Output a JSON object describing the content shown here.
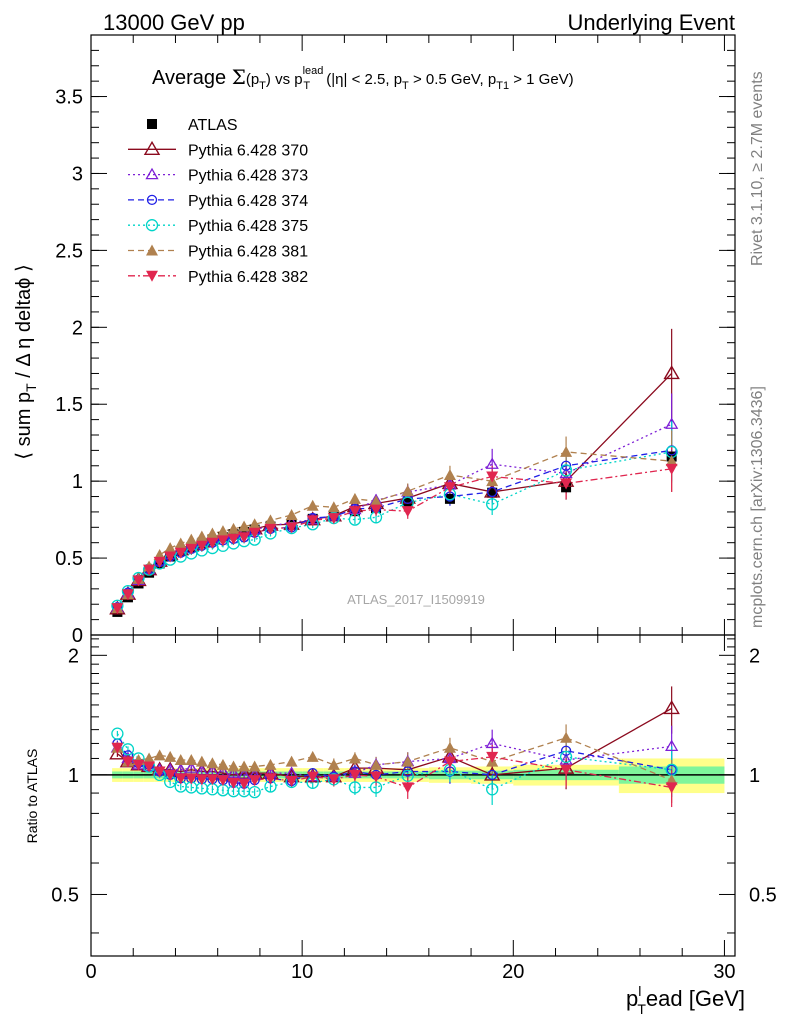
{
  "header": {
    "left": "13000 GeV pp",
    "right": "Underlying Event"
  },
  "side_labels": {
    "rivet": "Rivet 3.1.10, ≥ 2.7M events",
    "mcplots": "mcplots.cern.ch [arXiv:1306.3436]"
  },
  "analysis_label": "ATLAS_2017_I1509919",
  "colors": {
    "atlas": "#000000",
    "p370": "#8b0a1e",
    "p373": "#7d1fd6",
    "p374": "#1f1fe6",
    "p375": "#00d4c8",
    "p381": "#b0814f",
    "p382": "#e0264f",
    "band_inner": "#7ff59b",
    "band_outer": "#ffff8a",
    "ref_line": "#000000",
    "analysis_label": "#a6a6a6",
    "side_label": "#808080"
  },
  "chart_data": [
    {
      "type": "scatter",
      "panel": "main",
      "title": "Average Σ(p_T) vs p_T^lead (|η| < 2.5, p_T > 0.5 GeV, p_T1 > 1 GeV)",
      "title_parts": {
        "pre": "Average ",
        "sigma": "Σ",
        "paren_open": "(p",
        "sub_T": "T",
        "paren_close": ")",
        "vs": " vs p",
        "sup_lead": "lead",
        "sub_T2": "T",
        "cut1": " (|η| < 2.5, p",
        "sub_T3": "T",
        "cut2": " > 0.5 GeV, p",
        "sub_T1": "T1",
        "cut3": " > 1 GeV)"
      },
      "ylabel_parts": {
        "pre": "⟨ sum p",
        "sub": "T",
        "post": " / Δ η deltaϕ ⟩"
      },
      "xlim": [
        0,
        30.5
      ],
      "ylim": [
        0,
        3.9
      ],
      "y_ticks": [
        0,
        0.5,
        1,
        1.5,
        2,
        2.5,
        3,
        3.5
      ],
      "y_tick_labels": [
        "0",
        "0.5",
        "1",
        "1.5",
        "2",
        "2.5",
        "3",
        "3.5"
      ],
      "legend_position": "top-left",
      "x": [
        1.25,
        1.75,
        2.25,
        2.75,
        3.25,
        3.75,
        4.25,
        4.75,
        5.25,
        5.75,
        6.25,
        6.75,
        7.25,
        7.75,
        8.5,
        9.5,
        10.5,
        11.5,
        12.5,
        13.5,
        15.0,
        17.0,
        19.0,
        22.5,
        27.5
      ],
      "series": [
        {
          "key": "atlas",
          "name": "ATLAS",
          "marker": "square",
          "values": [
            0.15,
            0.245,
            0.335,
            0.405,
            0.465,
            0.51,
            0.545,
            0.57,
            0.595,
            0.615,
            0.635,
            0.655,
            0.67,
            0.685,
            0.705,
            0.725,
            0.755,
            0.78,
            0.805,
            0.825,
            0.865,
            0.885,
            0.925,
            0.96,
            1.16
          ],
          "errors": [
            0.01,
            0.01,
            0.01,
            0.01,
            0.01,
            0.01,
            0.01,
            0.01,
            0.01,
            0.01,
            0.01,
            0.01,
            0.01,
            0.01,
            0.01,
            0.012,
            0.015,
            0.015,
            0.018,
            0.02,
            0.02,
            0.025,
            0.03,
            0.04,
            0.06
          ]
        },
        {
          "key": "p370",
          "name": "Pythia 6.428 370",
          "marker": "triangle-open",
          "line": "solid",
          "values": [
            0.17,
            0.265,
            0.355,
            0.425,
            0.48,
            0.525,
            0.555,
            0.585,
            0.605,
            0.625,
            0.64,
            0.655,
            0.675,
            0.69,
            0.715,
            0.72,
            0.75,
            0.775,
            0.835,
            0.855,
            0.89,
            0.985,
            0.93,
            1.0,
            1.7
          ],
          "errors": [
            0.01,
            0.01,
            0.01,
            0.01,
            0.01,
            0.01,
            0.01,
            0.01,
            0.01,
            0.01,
            0.01,
            0.01,
            0.015,
            0.015,
            0.02,
            0.02,
            0.025,
            0.03,
            0.03,
            0.04,
            0.05,
            0.06,
            0.07,
            0.12,
            0.29
          ]
        },
        {
          "key": "p373",
          "name": "Pythia 6.428 373",
          "marker": "triangle-open-small",
          "line": "dotted",
          "values": [
            0.175,
            0.27,
            0.355,
            0.425,
            0.48,
            0.525,
            0.56,
            0.59,
            0.605,
            0.625,
            0.645,
            0.66,
            0.67,
            0.685,
            0.71,
            0.73,
            0.75,
            0.775,
            0.815,
            0.875,
            0.93,
            0.975,
            1.11,
            1.05,
            1.37
          ],
          "errors": [
            0.01,
            0.01,
            0.01,
            0.01,
            0.01,
            0.01,
            0.01,
            0.01,
            0.01,
            0.01,
            0.01,
            0.01,
            0.015,
            0.015,
            0.02,
            0.02,
            0.025,
            0.03,
            0.03,
            0.04,
            0.05,
            0.06,
            0.1,
            0.1,
            0.2
          ]
        },
        {
          "key": "p374",
          "name": "Pythia 6.428 374",
          "marker": "circle-open-small",
          "line": "dashed",
          "values": [
            0.18,
            0.275,
            0.36,
            0.43,
            0.475,
            0.51,
            0.535,
            0.56,
            0.58,
            0.6,
            0.615,
            0.625,
            0.635,
            0.665,
            0.69,
            0.7,
            0.76,
            0.77,
            0.82,
            0.825,
            0.885,
            0.9,
            0.93,
            1.1,
            1.2
          ],
          "errors": [
            0.01,
            0.01,
            0.01,
            0.01,
            0.01,
            0.01,
            0.01,
            0.01,
            0.01,
            0.01,
            0.01,
            0.01,
            0.015,
            0.015,
            0.02,
            0.02,
            0.025,
            0.03,
            0.03,
            0.04,
            0.05,
            0.06,
            0.07,
            0.1,
            0.2
          ]
        },
        {
          "key": "p375",
          "name": "Pythia 6.428 375",
          "marker": "circle-open",
          "line": "dotted",
          "values": [
            0.19,
            0.285,
            0.37,
            0.425,
            0.465,
            0.49,
            0.51,
            0.53,
            0.55,
            0.565,
            0.58,
            0.595,
            0.61,
            0.62,
            0.66,
            0.695,
            0.72,
            0.76,
            0.75,
            0.765,
            0.86,
            0.915,
            0.85,
            1.07,
            1.19
          ],
          "errors": [
            0.01,
            0.01,
            0.01,
            0.01,
            0.01,
            0.01,
            0.01,
            0.01,
            0.01,
            0.01,
            0.01,
            0.01,
            0.015,
            0.015,
            0.02,
            0.02,
            0.025,
            0.03,
            0.03,
            0.04,
            0.05,
            0.06,
            0.07,
            0.1,
            0.2
          ]
        },
        {
          "key": "p381",
          "name": "Pythia 6.428 381",
          "marker": "triangle-filled",
          "line": "dashed",
          "values": [
            0.175,
            0.265,
            0.365,
            0.445,
            0.52,
            0.565,
            0.595,
            0.62,
            0.64,
            0.66,
            0.675,
            0.69,
            0.705,
            0.72,
            0.745,
            0.78,
            0.84,
            0.83,
            0.885,
            0.87,
            0.935,
            1.04,
            1.0,
            1.19,
            1.13
          ],
          "errors": [
            0.01,
            0.01,
            0.01,
            0.01,
            0.01,
            0.01,
            0.01,
            0.01,
            0.01,
            0.01,
            0.01,
            0.01,
            0.015,
            0.015,
            0.02,
            0.02,
            0.025,
            0.03,
            0.03,
            0.04,
            0.05,
            0.06,
            0.07,
            0.1,
            0.2
          ]
        },
        {
          "key": "p382",
          "name": "Pythia 6.428 382",
          "marker": "triangle-down-filled",
          "line": "dashdot",
          "values": [
            0.175,
            0.265,
            0.355,
            0.425,
            0.475,
            0.51,
            0.535,
            0.56,
            0.58,
            0.6,
            0.615,
            0.625,
            0.635,
            0.665,
            0.69,
            0.7,
            0.745,
            0.76,
            0.805,
            0.815,
            0.805,
            0.96,
            1.03,
            0.985,
            1.08
          ],
          "errors": [
            0.01,
            0.01,
            0.01,
            0.01,
            0.01,
            0.01,
            0.01,
            0.01,
            0.01,
            0.01,
            0.01,
            0.01,
            0.015,
            0.015,
            0.02,
            0.02,
            0.025,
            0.03,
            0.03,
            0.04,
            0.05,
            0.06,
            0.07,
            0.1,
            0.15
          ]
        }
      ]
    },
    {
      "type": "scatter",
      "panel": "ratio",
      "ylabel": "Ratio to ATLAS",
      "xlabel_parts": {
        "pre": "p",
        "sub": "T",
        "sup": "l",
        "post": "ead [GeV]"
      },
      "xlim": [
        0,
        30.5
      ],
      "ylim": [
        0.35,
        2.25
      ],
      "x_ticks": [
        0,
        10,
        20,
        30
      ],
      "x_tick_labels": [
        "0",
        "10",
        "20",
        "30"
      ],
      "y_ticks": [
        0.5,
        1,
        2
      ],
      "y_tick_labels": [
        "0.5",
        "1",
        "2"
      ],
      "reference": 1,
      "band_edges": [
        1.0,
        1.5,
        2.0,
        2.5,
        3.0,
        3.5,
        4.0,
        4.5,
        5.0,
        5.5,
        6.0,
        6.5,
        7.0,
        7.5,
        8.0,
        9.0,
        10.0,
        11.0,
        12.0,
        13.0,
        14.0,
        16.0,
        18.0,
        20.0,
        25.0,
        30.0
      ],
      "band_inner": [
        0.02,
        0.02,
        0.02,
        0.02,
        0.02,
        0.02,
        0.02,
        0.02,
        0.02,
        0.02,
        0.02,
        0.02,
        0.02,
        0.02,
        0.02,
        0.02,
        0.02,
        0.02,
        0.02,
        0.02,
        0.02,
        0.025,
        0.025,
        0.03,
        0.05
      ],
      "band_outer": [
        0.04,
        0.04,
        0.04,
        0.04,
        0.04,
        0.04,
        0.04,
        0.04,
        0.04,
        0.04,
        0.04,
        0.04,
        0.04,
        0.04,
        0.04,
        0.04,
        0.04,
        0.04,
        0.04,
        0.04,
        0.04,
        0.045,
        0.05,
        0.06,
        0.1
      ],
      "series": [
        {
          "key": "p370",
          "values": [
            1.13,
            1.08,
            1.06,
            1.05,
            1.03,
            1.03,
            1.02,
            1.03,
            1.02,
            1.02,
            1.01,
            1.0,
            1.01,
            1.01,
            1.01,
            0.99,
            0.99,
            0.99,
            1.04,
            1.04,
            1.03,
            1.11,
            1.0,
            1.04,
            1.47
          ],
          "errors": [
            0.02,
            0.02,
            0.02,
            0.02,
            0.02,
            0.02,
            0.02,
            0.02,
            0.02,
            0.02,
            0.02,
            0.02,
            0.02,
            0.02,
            0.03,
            0.03,
            0.03,
            0.04,
            0.04,
            0.05,
            0.06,
            0.07,
            0.08,
            0.12,
            0.2
          ]
        },
        {
          "key": "p373",
          "values": [
            1.17,
            1.1,
            1.06,
            1.05,
            1.03,
            1.03,
            1.03,
            1.04,
            1.02,
            1.02,
            1.02,
            1.01,
            1.0,
            1.0,
            1.01,
            1.01,
            0.99,
            0.99,
            1.01,
            1.06,
            1.08,
            1.1,
            1.2,
            1.09,
            1.18
          ],
          "errors": [
            0.02,
            0.02,
            0.02,
            0.02,
            0.02,
            0.02,
            0.02,
            0.02,
            0.02,
            0.02,
            0.02,
            0.02,
            0.02,
            0.02,
            0.03,
            0.03,
            0.03,
            0.04,
            0.04,
            0.05,
            0.06,
            0.07,
            0.1,
            0.1,
            0.15
          ]
        },
        {
          "key": "p374",
          "values": [
            1.2,
            1.12,
            1.07,
            1.06,
            1.02,
            1.0,
            0.98,
            0.98,
            0.975,
            0.975,
            0.97,
            0.955,
            0.95,
            0.97,
            0.98,
            0.965,
            1.01,
            0.99,
            1.02,
            1.0,
            1.02,
            1.02,
            1.0,
            1.15,
            1.03
          ],
          "errors": [
            0.02,
            0.02,
            0.02,
            0.02,
            0.02,
            0.02,
            0.02,
            0.02,
            0.02,
            0.02,
            0.02,
            0.02,
            0.02,
            0.02,
            0.03,
            0.03,
            0.03,
            0.04,
            0.04,
            0.05,
            0.06,
            0.07,
            0.08,
            0.1,
            0.15
          ]
        },
        {
          "key": "p375",
          "values": [
            1.27,
            1.16,
            1.1,
            1.05,
            1.0,
            0.96,
            0.935,
            0.93,
            0.925,
            0.92,
            0.915,
            0.91,
            0.91,
            0.905,
            0.935,
            0.96,
            0.955,
            0.975,
            0.93,
            0.93,
            0.995,
            1.03,
            0.92,
            1.11,
            1.03
          ],
          "errors": [
            0.02,
            0.02,
            0.02,
            0.02,
            0.02,
            0.02,
            0.02,
            0.02,
            0.02,
            0.02,
            0.02,
            0.02,
            0.02,
            0.02,
            0.03,
            0.03,
            0.03,
            0.04,
            0.04,
            0.05,
            0.06,
            0.07,
            0.08,
            0.1,
            0.15
          ]
        },
        {
          "key": "p381",
          "values": [
            1.17,
            1.08,
            1.09,
            1.1,
            1.12,
            1.11,
            1.09,
            1.09,
            1.08,
            1.07,
            1.06,
            1.05,
            1.05,
            1.05,
            1.06,
            1.08,
            1.11,
            1.06,
            1.1,
            1.06,
            1.08,
            1.17,
            1.08,
            1.24,
            0.97
          ],
          "errors": [
            0.02,
            0.02,
            0.02,
            0.02,
            0.02,
            0.02,
            0.02,
            0.02,
            0.02,
            0.02,
            0.02,
            0.02,
            0.02,
            0.02,
            0.03,
            0.03,
            0.03,
            0.04,
            0.04,
            0.05,
            0.06,
            0.07,
            0.08,
            0.1,
            0.12
          ]
        },
        {
          "key": "p382",
          "values": [
            1.17,
            1.08,
            1.06,
            1.05,
            1.02,
            1.0,
            0.98,
            0.98,
            0.975,
            0.975,
            0.97,
            0.955,
            0.95,
            0.97,
            0.98,
            0.965,
            0.99,
            0.975,
            1.0,
            0.99,
            0.93,
            1.08,
            1.11,
            1.03,
            0.93
          ],
          "errors": [
            0.02,
            0.02,
            0.02,
            0.02,
            0.02,
            0.02,
            0.02,
            0.02,
            0.02,
            0.02,
            0.02,
            0.02,
            0.02,
            0.02,
            0.03,
            0.03,
            0.03,
            0.04,
            0.04,
            0.05,
            0.06,
            0.07,
            0.08,
            0.1,
            0.1
          ]
        },
        {
          "key": "atlas",
          "values": [
            1,
            1,
            1,
            1,
            1,
            1,
            1,
            1,
            1,
            1,
            1,
            1,
            1,
            1,
            1,
            1,
            1,
            1,
            1,
            1,
            1,
            1,
            1,
            1,
            1
          ],
          "errors": [
            0,
            0,
            0,
            0,
            0,
            0,
            0,
            0,
            0,
            0,
            0,
            0,
            0,
            0,
            0,
            0,
            0,
            0,
            0,
            0,
            0,
            0,
            0,
            0,
            0
          ]
        }
      ]
    }
  ]
}
